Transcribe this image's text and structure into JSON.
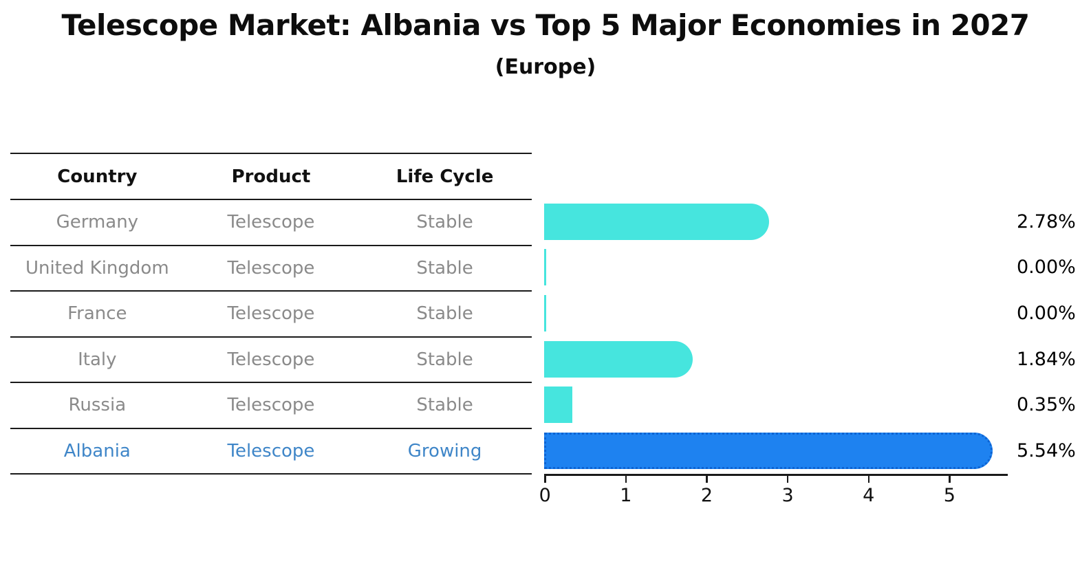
{
  "title": "Telescope Market: Albania vs Top 5 Major Economies in 2027",
  "subtitle": "(Europe)",
  "table": {
    "headers": [
      "Country",
      "Product",
      "Life Cycle"
    ]
  },
  "chart_data": {
    "type": "bar",
    "orientation": "horizontal",
    "title": "Telescope Market: Albania vs Top 5 Major Economies in 2027",
    "subtitle": "(Europe)",
    "xlabel": "",
    "ylabel": "",
    "xlim": [
      0,
      5.73
    ],
    "x_ticks": [
      0,
      1,
      2,
      3,
      4,
      5
    ],
    "grid": false,
    "legend": false,
    "categories": [
      "Germany",
      "United Kingdom",
      "France",
      "Italy",
      "Russia",
      "Albania"
    ],
    "values": [
      2.78,
      0.0,
      0.0,
      1.84,
      0.35,
      5.54
    ],
    "value_labels": [
      "2.78%",
      "0.00%",
      "0.00%",
      "1.84%",
      "0.35%",
      "5.54%"
    ],
    "rows": [
      {
        "country": "Germany",
        "product": "Telescope",
        "life_cycle": "Stable",
        "value": 2.78,
        "value_label": "2.78%",
        "highlight": false
      },
      {
        "country": "United Kingdom",
        "product": "Telescope",
        "life_cycle": "Stable",
        "value": 0.0,
        "value_label": "0.00%",
        "highlight": false
      },
      {
        "country": "France",
        "product": "Telescope",
        "life_cycle": "Stable",
        "value": 0.0,
        "value_label": "0.00%",
        "highlight": false
      },
      {
        "country": "Italy",
        "product": "Telescope",
        "life_cycle": "Stable",
        "value": 1.84,
        "value_label": "1.84%",
        "highlight": false
      },
      {
        "country": "Russia",
        "product": "Telescope",
        "life_cycle": "Stable",
        "value": 0.35,
        "value_label": "0.35%",
        "highlight": false
      },
      {
        "country": "Albania",
        "product": "Telescope",
        "life_cycle": "Growing",
        "value": 5.54,
        "value_label": "5.54%",
        "highlight": true
      }
    ],
    "colors": {
      "bar": "#46e5de",
      "highlight_bar": "#1e82f0",
      "highlight_bar_border": "#0d63d2",
      "highlight_text": "#3f86c8",
      "row_text": "#8a8a8a",
      "header_text": "#111111",
      "axis": "#1a1a1a",
      "value_label_text": "#000000"
    }
  }
}
